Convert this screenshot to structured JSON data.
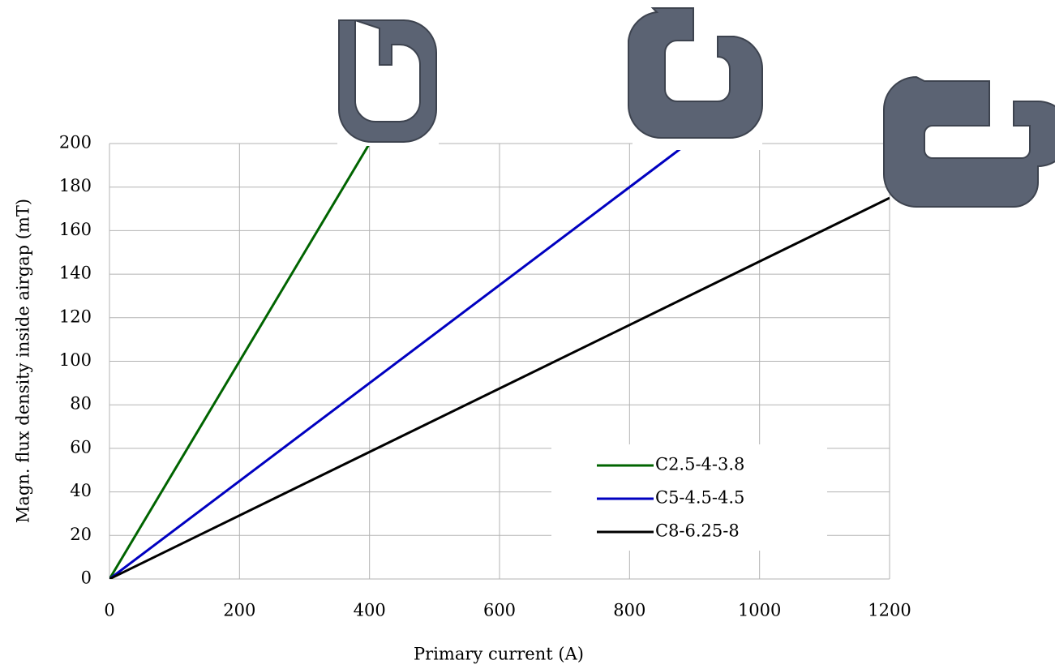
{
  "chart_data": {
    "type": "line",
    "x_label": "Primary current (A)",
    "y_label": "Magn. flux density inside airgap (mT)",
    "xlim": [
      0,
      1200
    ],
    "xticks": [
      0,
      200,
      400,
      600,
      800,
      1000,
      1200
    ],
    "ylim": [
      0,
      200
    ],
    "yticks": [
      0,
      20,
      40,
      60,
      80,
      100,
      120,
      140,
      160,
      180,
      200
    ],
    "grid": true,
    "legend": "lower right",
    "series": [
      {
        "name": "C2.5-4-3.8",
        "color": "#006400",
        "x": [
          0,
          400
        ],
        "values": [
          0,
          200
        ]
      },
      {
        "name": "C5-4.5-4.5",
        "color": "#0000c0",
        "x": [
          0,
          889
        ],
        "values": [
          0,
          200
        ]
      },
      {
        "name": "C8-6.25-8",
        "color": "#000000",
        "x": [
          0,
          1200
        ],
        "values": [
          0,
          175
        ]
      }
    ]
  }
}
